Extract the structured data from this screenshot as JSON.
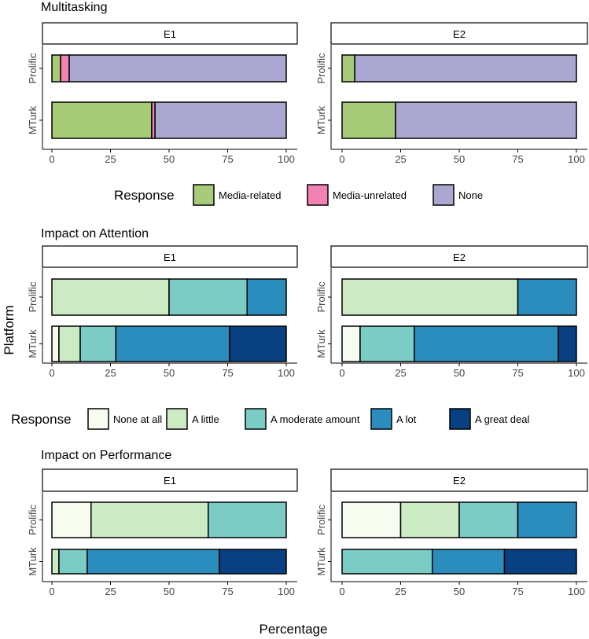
{
  "chart_data": [
    {
      "type": "bar",
      "orientation": "horizontal-stacked",
      "title": "Multitasking",
      "facets": [
        "E1",
        "E2"
      ],
      "categories": [
        "Prolific",
        "MTurk"
      ],
      "legend_title": "Response",
      "legend": [
        "Media-related",
        "Media-unrelated",
        "None"
      ],
      "colors": [
        "#a6cc7a",
        "#f282b4",
        "#aaa8d0"
      ],
      "values": {
        "E1": {
          "Prolific": [
            3.7,
            3.7,
            92.6
          ],
          "MTurk": [
            42.6,
            1.4,
            56.0
          ]
        },
        "E2": {
          "Prolific": [
            5.4,
            0,
            94.6
          ],
          "MTurk": [
            22.8,
            0,
            77.2
          ]
        }
      },
      "xlim": [
        0,
        100
      ],
      "xticks": [
        "0",
        "25",
        "50",
        "75",
        "100"
      ]
    },
    {
      "type": "bar",
      "orientation": "horizontal-stacked",
      "title": "Impact on Attention",
      "facets": [
        "E1",
        "E2"
      ],
      "categories": [
        "Prolific",
        "MTurk"
      ],
      "legend_title": "Response",
      "legend": [
        "None at all",
        "A little",
        "A moderate amount",
        "A lot",
        "A great deal"
      ],
      "colors": [
        "#f7fcf0",
        "#ccebc5",
        "#7bccc4",
        "#2b8cbe",
        "#084081"
      ],
      "values": {
        "E1": {
          "Prolific": [
            0,
            50,
            33.3,
            16.7,
            0
          ],
          "MTurk": [
            3.0,
            9.1,
            15.2,
            48.5,
            24.2
          ]
        },
        "E2": {
          "Prolific": [
            0,
            75,
            0,
            25,
            0
          ],
          "MTurk": [
            7.7,
            0,
            23.1,
            61.5,
            7.7
          ]
        }
      },
      "xlim": [
        0,
        100
      ],
      "xticks": [
        "0",
        "25",
        "50",
        "75",
        "100"
      ]
    },
    {
      "type": "bar",
      "orientation": "horizontal-stacked",
      "title": "Impact on Performance",
      "facets": [
        "E1",
        "E2"
      ],
      "categories": [
        "Prolific",
        "MTurk"
      ],
      "legend": [
        "None at all",
        "A little",
        "A moderate amount",
        "A lot",
        "A great deal"
      ],
      "colors": [
        "#f7fcf0",
        "#ccebc5",
        "#7bccc4",
        "#2b8cbe",
        "#084081"
      ],
      "values": {
        "E1": {
          "Prolific": [
            16.7,
            50,
            33.3,
            0,
            0
          ],
          "MTurk": [
            0,
            3.0,
            12.1,
            56.4,
            28.5
          ]
        },
        "E2": {
          "Prolific": [
            25,
            25,
            25,
            25,
            0
          ],
          "MTurk": [
            0,
            0,
            38.5,
            30.8,
            30.7
          ]
        }
      },
      "xlim": [
        0,
        100
      ],
      "xticks": [
        "0",
        "25",
        "50",
        "75",
        "100"
      ]
    }
  ],
  "xlabel": "Percentage",
  "ylabel": "Platform"
}
